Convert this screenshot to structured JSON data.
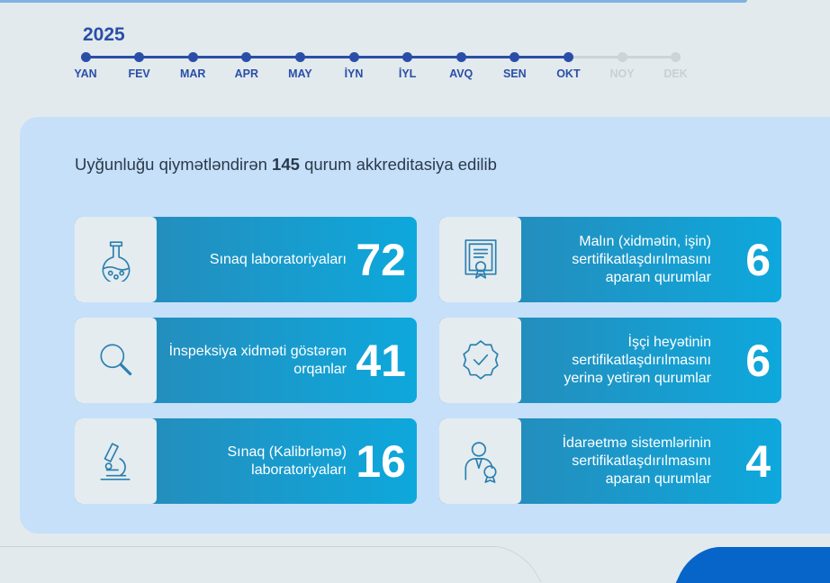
{
  "timeline": {
    "year": "2025",
    "months": [
      "YAN",
      "FEV",
      "MAR",
      "APR",
      "MAY",
      "İYN",
      "İYL",
      "AVQ",
      "SEN",
      "OKT",
      "NOY",
      "DEK"
    ],
    "current_month_index": 9,
    "active_color": "#2a4ea8",
    "inactive_color": "#cdd3d6"
  },
  "panel": {
    "headline_prefix": "Uyğunluğu qiymətləndirən",
    "headline_number": "145",
    "headline_suffix": "qurum akkreditasiya edilib"
  },
  "cards": [
    {
      "icon": "flask-icon",
      "label": "Sınaq laboratoriyaları",
      "value": "72"
    },
    {
      "icon": "certificate-icon",
      "label": "Malın (xidmətin, işin) sertifikatlaşdırılmasını aparan qurumlar",
      "value": "6"
    },
    {
      "icon": "magnifier-icon",
      "label": "İnspeksiya xidməti göstərən orqanlar",
      "value": "41"
    },
    {
      "icon": "award-badge-icon",
      "label": "İşçi heyətinin sertifikatlaşdırılmasını yerinə yetirən qurumlar",
      "value": "6"
    },
    {
      "icon": "microscope-icon",
      "label": "Sınaq (Kalibrləmə) laboratoriyaları",
      "value": "16"
    },
    {
      "icon": "person-medal-icon",
      "label": "İdarəetmə sistemlərinin sertifikatlaşdırılmasını aparan qurumlar",
      "value": "4"
    }
  ]
}
